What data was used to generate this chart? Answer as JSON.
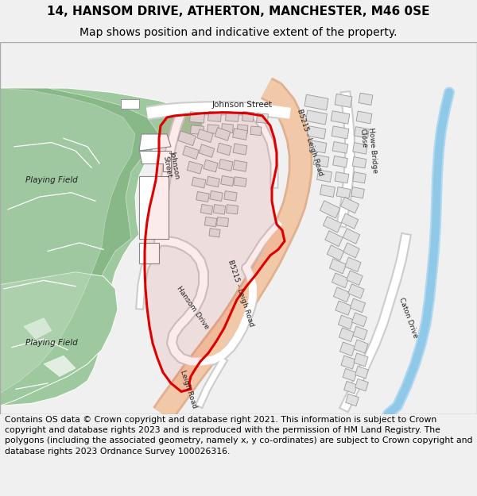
{
  "title_line1": "14, HANSOM DRIVE, ATHERTON, MANCHESTER, M46 0SE",
  "title_line2": "Map shows position and indicative extent of the property.",
  "footer": "Contains OS data © Crown copyright and database right 2021. This information is subject to Crown copyright and database rights 2023 and is reproduced with the permission of HM Land Registry. The polygons (including the associated geometry, namely x, y co-ordinates) are subject to Crown copyright and database rights 2023 Ordnance Survey 100026316.",
  "bg_color": "#f0f0f0",
  "map_bg": "#ffffff",
  "green1": "#9ec99e",
  "green2": "#7aad7a",
  "green3": "#b8d8b8",
  "road_fill": "#f2c9a8",
  "road_edge": "#e0b090",
  "bldg_fill": "#e0e0e0",
  "bldg_edge": "#aaaaaa",
  "water_color": "#b0d8f0",
  "red_line": "#dd0000",
  "text_dark": "#222222",
  "white": "#ffffff",
  "title_fs": 11,
  "sub_fs": 10,
  "footer_fs": 7.8,
  "map_label_fs": 7.5,
  "small_label_fs": 6.5
}
